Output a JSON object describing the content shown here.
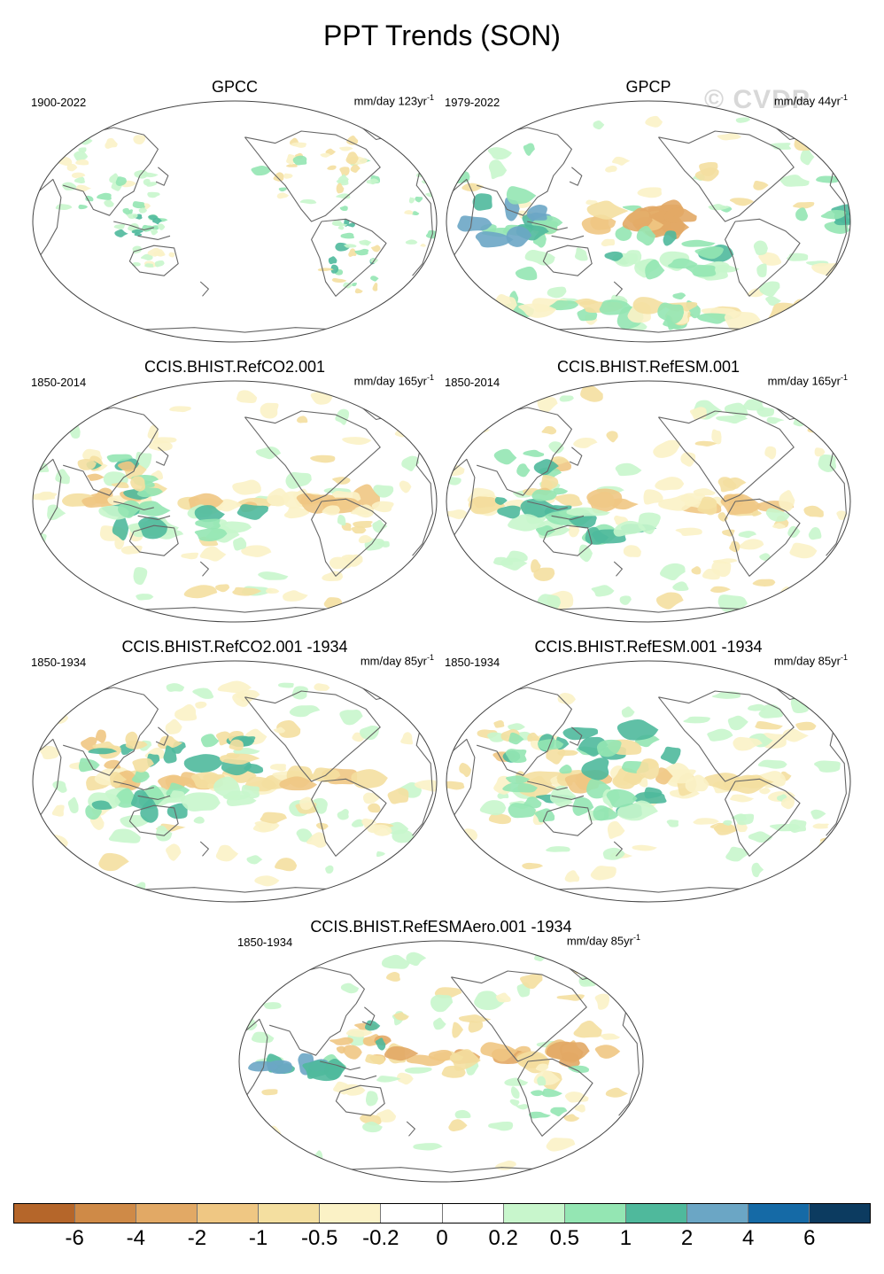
{
  "title": "PPT Trends (SON)",
  "watermark": "© CVDP",
  "panels": [
    {
      "title": "GPCC",
      "period": "1900-2022",
      "units_text": "mm/day 123yr",
      "units_exp": "-1",
      "pattern": "land"
    },
    {
      "title": "GPCP",
      "period": "1979-2022",
      "units_text": "mm/day 44yr",
      "units_exp": "-1",
      "pattern": "obs"
    },
    {
      "title": "CCIS.BHIST.RefCO2.001",
      "period": "1850-2014",
      "units_text": "mm/day 165yr",
      "units_exp": "-1",
      "pattern": "model"
    },
    {
      "title": "CCIS.BHIST.RefESM.001",
      "period": "1850-2014",
      "units_text": "mm/day 165yr",
      "units_exp": "-1",
      "pattern": "model"
    },
    {
      "title": "CCIS.BHIST.RefCO2.001 -1934",
      "period": "1850-1934",
      "units_text": "mm/day 85yr",
      "units_exp": "-1",
      "pattern": "model2"
    },
    {
      "title": "CCIS.BHIST.RefESM.001 -1934",
      "period": "1850-1934",
      "units_text": "mm/day 85yr",
      "units_exp": "-1",
      "pattern": "model2"
    },
    {
      "title": "CCIS.BHIST.RefESMAero.001 -1934",
      "period": "1850-1934",
      "units_text": "mm/day 85yr",
      "units_exp": "-1",
      "pattern": "aero"
    }
  ],
  "colorbar": {
    "labels": [
      "-6",
      "-4",
      "-2",
      "-1",
      "-0.5",
      "-0.2",
      "0",
      "0.2",
      "0.5",
      "1",
      "2",
      "4",
      "6"
    ],
    "colors": [
      "#b5662a",
      "#cf8a47",
      "#e2a965",
      "#efc783",
      "#f4dfa0",
      "#fbf2c6",
      "#ffffff",
      "#ffffff",
      "#c8f6cc",
      "#94e6b3",
      "#4fb99c",
      "#6ba6c5",
      "#156aa6",
      "#0c3b60"
    ]
  }
}
